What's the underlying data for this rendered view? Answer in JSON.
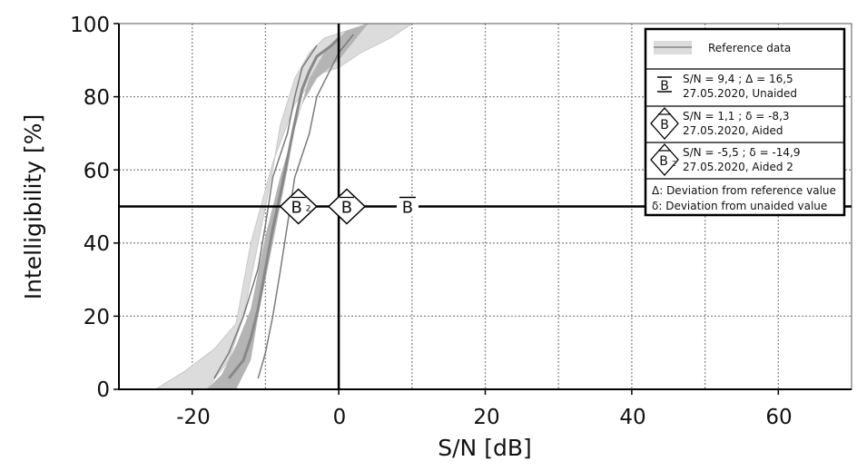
{
  "chart_data": {
    "type": "line",
    "title": "",
    "xlabel": "S/N [dB]",
    "ylabel": "Intelligibility [%]",
    "xlim": [
      -30,
      70
    ],
    "ylim": [
      0,
      100
    ],
    "x_tick_labels": [
      "-20",
      "0",
      "20",
      "40",
      "60"
    ],
    "y_tick_labels": [
      "0",
      "20",
      "40",
      "60",
      "80",
      "100"
    ],
    "grid": true,
    "legend_position": "top-right",
    "reference_level_percent": 50,
    "reference": {
      "legend_label": "Reference data",
      "outer_band": {
        "upper": [
          [
            -18,
            0
          ],
          [
            -15,
            8
          ],
          [
            -13,
            20
          ],
          [
            -11,
            40
          ],
          [
            -9,
            60
          ],
          [
            -8,
            72
          ],
          [
            -6,
            85
          ],
          [
            -4,
            92
          ],
          [
            -2,
            96
          ],
          [
            1,
            98
          ],
          [
            4,
            100
          ]
        ],
        "lower": [
          [
            -25,
            0
          ],
          [
            -21,
            5
          ],
          [
            -17,
            11
          ],
          [
            -14,
            18
          ],
          [
            -12,
            40
          ],
          [
            -9,
            62
          ],
          [
            -6,
            78
          ],
          [
            -3,
            86
          ],
          [
            0,
            88
          ],
          [
            3,
            92
          ],
          [
            7,
            96
          ],
          [
            10,
            100
          ]
        ]
      },
      "inner_band": {
        "upper": [
          [
            -14,
            0
          ],
          [
            -12,
            8
          ],
          [
            -11,
            20
          ],
          [
            -9,
            40
          ],
          [
            -7,
            60
          ],
          [
            -6,
            72
          ],
          [
            -4,
            85
          ],
          [
            -2,
            92
          ],
          [
            0,
            96
          ],
          [
            1,
            98
          ]
        ],
        "lower": [
          [
            -18,
            0
          ],
          [
            -16,
            4
          ],
          [
            -14,
            12
          ],
          [
            -12,
            22
          ],
          [
            -10,
            42
          ],
          [
            -8,
            58
          ],
          [
            -5,
            78
          ],
          [
            -3,
            85
          ],
          [
            0,
            90
          ],
          [
            2,
            95
          ],
          [
            4,
            100
          ]
        ]
      },
      "median": [
        [
          -15,
          3
        ],
        [
          -13,
          8
        ],
        [
          -12,
          14
        ],
        [
          -11,
          22
        ],
        [
          -10,
          33
        ],
        [
          -9,
          44
        ],
        [
          -8,
          53
        ],
        [
          -7,
          63
        ],
        [
          -6,
          73
        ],
        [
          -5,
          82
        ],
        [
          -4,
          87
        ],
        [
          -3,
          91
        ],
        [
          -1,
          94
        ],
        [
          0,
          96
        ]
      ],
      "percentile_lines": [
        [
          [
            -17,
            3
          ],
          [
            -15,
            10
          ],
          [
            -13,
            20
          ],
          [
            -11,
            33
          ],
          [
            -10,
            45
          ],
          [
            -9,
            58
          ],
          [
            -7,
            70
          ],
          [
            -6,
            80
          ],
          [
            -5,
            88
          ],
          [
            -3,
            94
          ]
        ],
        [
          [
            -11,
            3
          ],
          [
            -10,
            10
          ],
          [
            -9,
            20
          ],
          [
            -8,
            32
          ],
          [
            -7,
            45
          ],
          [
            -6,
            58
          ],
          [
            -4,
            70
          ],
          [
            -3,
            80
          ],
          [
            -1,
            88
          ],
          [
            0,
            92
          ],
          [
            2,
            97
          ]
        ]
      ]
    },
    "measurements": [
      {
        "symbol": "B",
        "shape": "bar",
        "subscript": "",
        "sn": 9.4,
        "value_percent": 50,
        "line1": "S/N = 9,4  ;  Δ = 16,5",
        "line2": "27.05.2020, Unaided"
      },
      {
        "symbol": "B",
        "shape": "diamond",
        "subscript": "",
        "sn": 1.1,
        "value_percent": 50,
        "line1": "S/N = 1,1  ;  δ = -8,3",
        "line2": "27.05.2020, Aided"
      },
      {
        "symbol": "B",
        "shape": "diamond",
        "subscript": "2",
        "sn": -5.5,
        "value_percent": 50,
        "line1": "S/N = -5,5  ;  δ = -14,9",
        "line2": "27.05.2020, Aided 2"
      }
    ],
    "legend_notes": [
      "Δ: Deviation from reference value",
      "δ: Deviation from unaided value"
    ]
  },
  "colors": {
    "outer_band": "#dcdcdc",
    "inner_band": "#b4b4b4",
    "median": "#888888",
    "percentile": "#7a7a7a",
    "grid": "#8c8c8c",
    "axis": "#000000"
  }
}
